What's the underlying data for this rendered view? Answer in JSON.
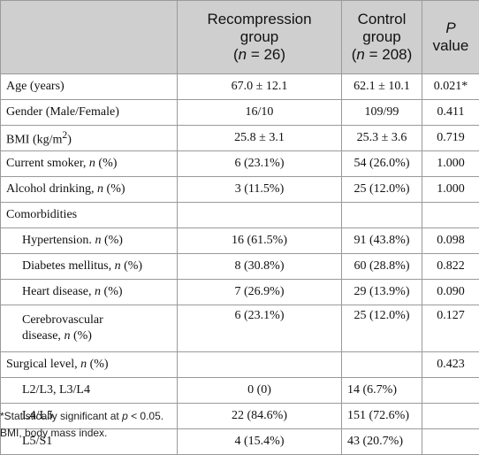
{
  "header": {
    "col2_l1": "Recompression",
    "col2_l2": "group",
    "col2_n": "n",
    "col2_eq": " = 26)",
    "col3_l1": "Control",
    "col3_l2": "group",
    "col3_n": "n",
    "col3_eq": " = 208)",
    "col4_l1": "P",
    "col4_l2": "value"
  },
  "rows": {
    "age": {
      "a": "Age (years)",
      "b": "67.0 ± 12.1",
      "c": "62.1 ± 10.1",
      "d": "0.021*"
    },
    "gender": {
      "a": "Gender (Male/Female)",
      "b": "16/10",
      "c": "109/99",
      "d": "0.411"
    },
    "bmi": {
      "a": "BMI (kg/m",
      "sup": "2",
      "a2": ")",
      "b": "25.8 ± 3.1",
      "c": "25.3 ± 3.6",
      "d": "0.719"
    },
    "smoker": {
      "a": "Current smoker, ",
      "n": "n",
      "a2": " (%)",
      "b": "6 (23.1%)",
      "c": "54 (26.0%)",
      "d": "1.000"
    },
    "alcohol": {
      "a": "Alcohol drinking, ",
      "n": "n",
      "a2": " (%)",
      "b": "3 (11.5%)",
      "c": "25 (12.0%)",
      "d": "1.000"
    },
    "comorb": {
      "a": "Comorbidities"
    },
    "htn": {
      "a": "Hypertension. ",
      "n": "n",
      "a2": " (%)",
      "b": "16 (61.5%)",
      "c": "91 (43.8%)",
      "d": "0.098"
    },
    "dm": {
      "a": "Diabetes mellitus, ",
      "n": "n",
      "a2": " (%)",
      "b": "8 (30.8%)",
      "c": "60 (28.8%)",
      "d": "0.822"
    },
    "heart": {
      "a": "Heart disease, ",
      "n": "n",
      "a2": " (%)",
      "b": "7 (26.9%)",
      "c": "29 (13.9%)",
      "d": "0.090"
    },
    "cvd": {
      "a1": "Cerebrovascular",
      "a": "disease, ",
      "n": "n",
      "a2": " (%)",
      "b": "6 (23.1%)",
      "c": "25 (12.0%)",
      "d": "0.127"
    },
    "surg": {
      "a": "Surgical level, ",
      "n": "n",
      "a2": " (%)",
      "d": "0.423"
    },
    "l2": {
      "a": "L2/L3, L3/L4",
      "b": "0 (0)",
      "c": "14 (6.7%)"
    },
    "l4": {
      "a": "L4/L5",
      "b": "22 (84.6%)",
      "c": "151 (72.6%)"
    },
    "l5": {
      "a": "L5/S1",
      "b": "4 (15.4%)",
      "c": "43 (20.7%)"
    }
  },
  "footnotes": {
    "f1_a": "*Statistically significant at ",
    "f1_p": "p",
    "f1_b": " < 0.05.",
    "f2": "BMI, body mass index."
  }
}
